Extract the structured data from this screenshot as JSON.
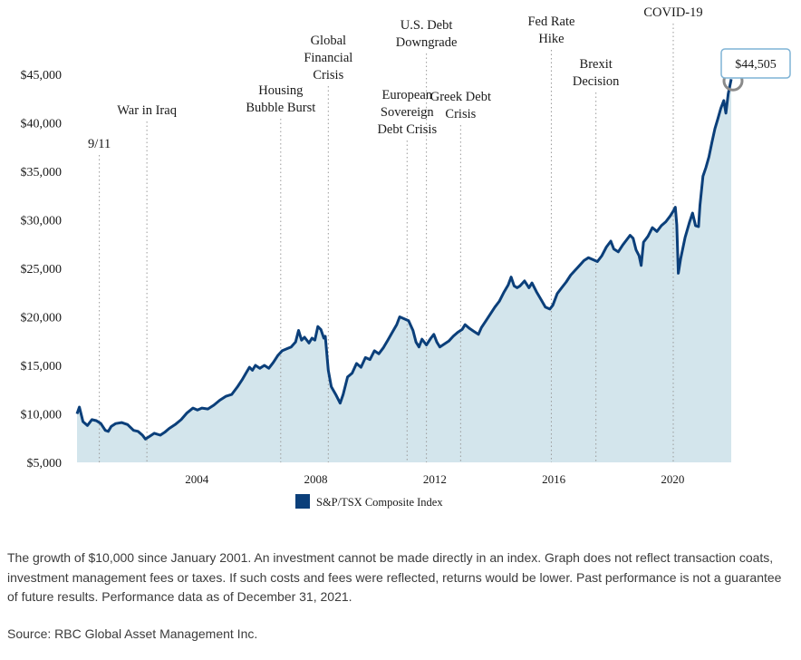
{
  "chart_data": {
    "type": "area",
    "series": [
      {
        "name": "S&P/TSX Composite Index",
        "color": "#0b3f7a",
        "fill": "#d3e5ec",
        "points": [
          [
            2000.0,
            10000
          ],
          [
            2000.08,
            10700
          ],
          [
            2000.2,
            9200
          ],
          [
            2000.35,
            8800
          ],
          [
            2000.5,
            9400
          ],
          [
            2000.65,
            9300
          ],
          [
            2000.8,
            9000
          ],
          [
            2000.95,
            8300
          ],
          [
            2001.05,
            8200
          ],
          [
            2001.15,
            8700
          ],
          [
            2001.3,
            9000
          ],
          [
            2001.5,
            9100
          ],
          [
            2001.7,
            8900
          ],
          [
            2001.9,
            8300
          ],
          [
            2002.05,
            8200
          ],
          [
            2002.2,
            7800
          ],
          [
            2002.3,
            7400
          ],
          [
            2002.45,
            7700
          ],
          [
            2002.6,
            8000
          ],
          [
            2002.8,
            7800
          ],
          [
            2002.95,
            8100
          ],
          [
            2003.1,
            8500
          ],
          [
            2003.3,
            8900
          ],
          [
            2003.5,
            9400
          ],
          [
            2003.7,
            10100
          ],
          [
            2003.9,
            10600
          ],
          [
            2004.05,
            10400
          ],
          [
            2004.2,
            10600
          ],
          [
            2004.4,
            10500
          ],
          [
            2004.6,
            10900
          ],
          [
            2004.8,
            11400
          ],
          [
            2005.0,
            11800
          ],
          [
            2005.2,
            12000
          ],
          [
            2005.4,
            12800
          ],
          [
            2005.55,
            13500
          ],
          [
            2005.7,
            14300
          ],
          [
            2005.8,
            14800
          ],
          [
            2005.9,
            14500
          ],
          [
            2006.0,
            15000
          ],
          [
            2006.15,
            14700
          ],
          [
            2006.3,
            15000
          ],
          [
            2006.45,
            14700
          ],
          [
            2006.6,
            15300
          ],
          [
            2006.75,
            16000
          ],
          [
            2006.9,
            16500
          ],
          [
            2007.05,
            16700
          ],
          [
            2007.2,
            16900
          ],
          [
            2007.35,
            17400
          ],
          [
            2007.45,
            18600
          ],
          [
            2007.55,
            17600
          ],
          [
            2007.65,
            17900
          ],
          [
            2007.8,
            17300
          ],
          [
            2007.9,
            17800
          ],
          [
            2008.0,
            17600
          ],
          [
            2008.1,
            19000
          ],
          [
            2008.2,
            18700
          ],
          [
            2008.3,
            17800
          ],
          [
            2008.35,
            18000
          ],
          [
            2008.45,
            14500
          ],
          [
            2008.55,
            12800
          ],
          [
            2008.7,
            12000
          ],
          [
            2008.85,
            11100
          ],
          [
            2008.95,
            12000
          ],
          [
            2009.1,
            13800
          ],
          [
            2009.25,
            14200
          ],
          [
            2009.4,
            15200
          ],
          [
            2009.55,
            14800
          ],
          [
            2009.7,
            15800
          ],
          [
            2009.85,
            15600
          ],
          [
            2010.0,
            16500
          ],
          [
            2010.15,
            16200
          ],
          [
            2010.3,
            16800
          ],
          [
            2010.45,
            17600
          ],
          [
            2010.6,
            18400
          ],
          [
            2010.75,
            19200
          ],
          [
            2010.85,
            20000
          ],
          [
            2011.0,
            19800
          ],
          [
            2011.15,
            19600
          ],
          [
            2011.3,
            18600
          ],
          [
            2011.4,
            17400
          ],
          [
            2011.5,
            16900
          ],
          [
            2011.6,
            17700
          ],
          [
            2011.75,
            17100
          ],
          [
            2011.9,
            17800
          ],
          [
            2012.0,
            18200
          ],
          [
            2012.1,
            17400
          ],
          [
            2012.2,
            16900
          ],
          [
            2012.35,
            17200
          ],
          [
            2012.5,
            17500
          ],
          [
            2012.65,
            18000
          ],
          [
            2012.8,
            18400
          ],
          [
            2012.95,
            18700
          ],
          [
            2013.05,
            19200
          ],
          [
            2013.2,
            18800
          ],
          [
            2013.35,
            18500
          ],
          [
            2013.5,
            18200
          ],
          [
            2013.6,
            18900
          ],
          [
            2013.75,
            19600
          ],
          [
            2013.9,
            20300
          ],
          [
            2014.05,
            21000
          ],
          [
            2014.2,
            21600
          ],
          [
            2014.35,
            22500
          ],
          [
            2014.5,
            23300
          ],
          [
            2014.6,
            24100
          ],
          [
            2014.7,
            23200
          ],
          [
            2014.8,
            23000
          ],
          [
            2014.9,
            23200
          ],
          [
            2015.05,
            23700
          ],
          [
            2015.2,
            23000
          ],
          [
            2015.3,
            23500
          ],
          [
            2015.45,
            22600
          ],
          [
            2015.6,
            21800
          ],
          [
            2015.75,
            21000
          ],
          [
            2015.9,
            20800
          ],
          [
            2016.0,
            21200
          ],
          [
            2016.15,
            22400
          ],
          [
            2016.3,
            23000
          ],
          [
            2016.45,
            23600
          ],
          [
            2016.6,
            24300
          ],
          [
            2016.75,
            24800
          ],
          [
            2016.9,
            25300
          ],
          [
            2017.05,
            25800
          ],
          [
            2017.2,
            26100
          ],
          [
            2017.35,
            25900
          ],
          [
            2017.5,
            25700
          ],
          [
            2017.65,
            26300
          ],
          [
            2017.8,
            27200
          ],
          [
            2017.95,
            27800
          ],
          [
            2018.05,
            27000
          ],
          [
            2018.2,
            26700
          ],
          [
            2018.35,
            27400
          ],
          [
            2018.5,
            28000
          ],
          [
            2018.6,
            28400
          ],
          [
            2018.7,
            28100
          ],
          [
            2018.8,
            26900
          ],
          [
            2018.9,
            26300
          ],
          [
            2018.97,
            25300
          ],
          [
            2019.05,
            27700
          ],
          [
            2019.2,
            28300
          ],
          [
            2019.35,
            29200
          ],
          [
            2019.5,
            28800
          ],
          [
            2019.65,
            29400
          ],
          [
            2019.8,
            29800
          ],
          [
            2019.95,
            30400
          ],
          [
            2020.05,
            30900
          ],
          [
            2020.12,
            31300
          ],
          [
            2020.17,
            29500
          ],
          [
            2020.22,
            24500
          ],
          [
            2020.3,
            26000
          ],
          [
            2020.45,
            28200
          ],
          [
            2020.6,
            29800
          ],
          [
            2020.7,
            30700
          ],
          [
            2020.8,
            29400
          ],
          [
            2020.9,
            29300
          ],
          [
            2020.95,
            31500
          ],
          [
            2021.05,
            34500
          ],
          [
            2021.15,
            35400
          ],
          [
            2021.25,
            36500
          ],
          [
            2021.35,
            38000
          ],
          [
            2021.45,
            39400
          ],
          [
            2021.55,
            40400
          ],
          [
            2021.65,
            41500
          ],
          [
            2021.75,
            42300
          ],
          [
            2021.82,
            41000
          ],
          [
            2021.9,
            43000
          ],
          [
            2022.0,
            44505
          ]
        ]
      }
    ],
    "xlim": [
      2000,
      2022
    ],
    "ylim": [
      5000,
      47000
    ],
    "x_ticks": [
      2004,
      2008,
      2012,
      2016,
      2020
    ],
    "y_ticks": [
      5000,
      10000,
      15000,
      20000,
      25000,
      30000,
      35000,
      40000,
      45000
    ],
    "y_tick_labels": [
      "$5,000",
      "$10,000",
      "$15,000",
      "$20,000",
      "$25,000",
      "$30,000",
      "$35,000",
      "$40,000",
      "$45,000"
    ],
    "events": [
      {
        "x": 2000.75,
        "lines": [
          "9/11"
        ]
      },
      {
        "x": 2002.35,
        "lines": [
          "War in Iraq"
        ]
      },
      {
        "x": 2006.85,
        "lines": [
          "Housing",
          "Bubble Burst"
        ]
      },
      {
        "x": 2008.45,
        "lines": [
          "Global",
          "Financial",
          "Crisis"
        ]
      },
      {
        "x": 2011.1,
        "lines": [
          "European",
          "Sovereign",
          "Debt Crisis"
        ]
      },
      {
        "x": 2011.75,
        "lines": [
          "U.S. Debt",
          "Downgrade"
        ]
      },
      {
        "x": 2012.9,
        "lines": [
          "Greek Debt",
          "Crisis"
        ]
      },
      {
        "x": 2015.95,
        "lines": [
          "Fed Rate",
          "Hike"
        ]
      },
      {
        "x": 2017.45,
        "lines": [
          "Brexit",
          "Decision"
        ]
      },
      {
        "x": 2020.05,
        "lines": [
          "COVID-19"
        ]
      }
    ],
    "callout": "$44,505",
    "legend": {
      "label": "S&P/TSX Composite Index",
      "placement": "bottom-center"
    }
  },
  "note": "The growth of $10,000 since January 2001. An investment cannot be made directly in an index. Graph does not reflect transaction coats, investment management fees or taxes. If such costs and fees were reflected, returns would be lower. Past performance is not a guarantee of future results. Performance data as of December 31, 2021.",
  "source": "Source: RBC Global Asset Management Inc."
}
